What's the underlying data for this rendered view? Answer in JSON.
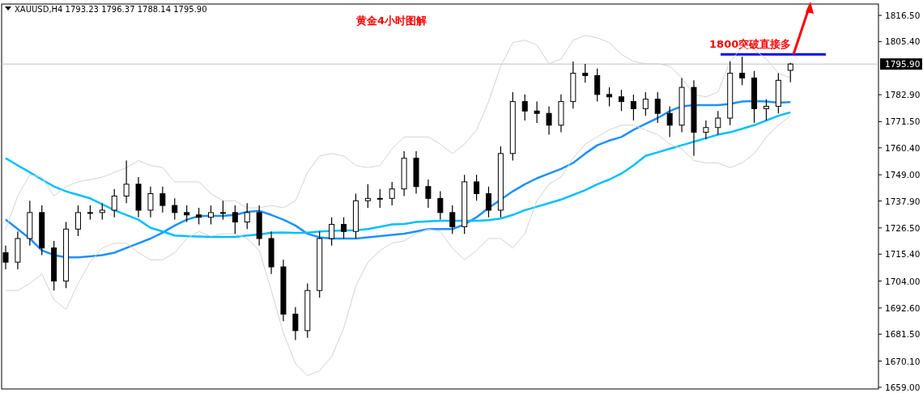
{
  "chart_data": {
    "type": "candlestick",
    "title": "黄金4小时图解",
    "subtitle": "XAUUSD,H4  1793.23 1796.37 1788.14 1795.90",
    "categories": [
      null,
      null,
      null,
      null,
      null,
      null,
      null,
      null,
      null,
      null,
      null,
      null,
      null,
      null,
      null,
      null,
      null,
      null,
      null,
      null,
      null,
      null,
      null,
      null,
      null,
      null,
      null,
      null,
      null,
      null,
      null,
      null,
      null,
      null,
      null,
      null,
      null,
      null,
      null,
      null,
      null,
      null,
      null,
      null,
      null,
      null,
      null,
      null,
      null,
      null,
      null,
      null,
      null,
      null,
      null,
      null,
      null,
      null,
      null,
      null,
      null,
      null,
      null,
      null,
      null,
      null
    ],
    "ohlc": [
      [
        1716,
        1719,
        1709,
        1712
      ],
      [
        1712,
        1725,
        1709,
        1722
      ],
      [
        1722,
        1738,
        1719,
        1733
      ],
      [
        1733,
        1736,
        1715,
        1718
      ],
      [
        1718,
        1721,
        1700,
        1704
      ],
      [
        1704,
        1729,
        1701,
        1726
      ],
      [
        1726,
        1736,
        1723,
        1733
      ],
      [
        1733,
        1736,
        1730,
        1733
      ],
      [
        1733,
        1737,
        1730,
        1734
      ],
      [
        1734,
        1743,
        1731,
        1740
      ],
      [
        1740,
        1755,
        1737,
        1745
      ],
      [
        1745,
        1748,
        1731,
        1734
      ],
      [
        1734,
        1744,
        1731,
        1741
      ],
      [
        1741,
        1744,
        1733,
        1736
      ],
      [
        1736,
        1739,
        1730,
        1733
      ],
      [
        1733,
        1736,
        1729,
        1732
      ],
      [
        1732,
        1735,
        1728,
        1731
      ],
      [
        1731,
        1736,
        1728,
        1733
      ],
      [
        1733,
        1738,
        1730,
        1733
      ],
      [
        1733,
        1736,
        1724,
        1729
      ],
      [
        1729,
        1737,
        1726,
        1733
      ],
      [
        1733,
        1736,
        1719,
        1722
      ],
      [
        1722,
        1725,
        1707,
        1710
      ],
      [
        1710,
        1713,
        1687,
        1690
      ],
      [
        1690,
        1693,
        1679,
        1683
      ],
      [
        1683,
        1703,
        1680,
        1700
      ],
      [
        1700,
        1725,
        1697,
        1722
      ],
      [
        1722,
        1731,
        1719,
        1728
      ],
      [
        1728,
        1731,
        1722,
        1725
      ],
      [
        1725,
        1741,
        1722,
        1738
      ],
      [
        1738,
        1745,
        1735,
        1739
      ],
      [
        1739,
        1743,
        1735,
        1739
      ],
      [
        1739,
        1746,
        1736,
        1743
      ],
      [
        1743,
        1759,
        1740,
        1756
      ],
      [
        1756,
        1759,
        1741,
        1744
      ],
      [
        1744,
        1747,
        1735,
        1739
      ],
      [
        1739,
        1742,
        1730,
        1733
      ],
      [
        1733,
        1736,
        1724,
        1727
      ],
      [
        1727,
        1749,
        1724,
        1746
      ],
      [
        1746,
        1749,
        1738,
        1741
      ],
      [
        1741,
        1744,
        1731,
        1734
      ],
      [
        1734,
        1761,
        1731,
        1758
      ],
      [
        1758,
        1784,
        1755,
        1780
      ],
      [
        1780,
        1783,
        1772,
        1776
      ],
      [
        1776,
        1780,
        1771,
        1775
      ],
      [
        1775,
        1778,
        1766,
        1770
      ],
      [
        1770,
        1783,
        1767,
        1780
      ],
      [
        1780,
        1797,
        1777,
        1792
      ],
      [
        1792,
        1796,
        1788,
        1791
      ],
      [
        1791,
        1794,
        1780,
        1783
      ],
      [
        1783,
        1786,
        1778,
        1782
      ],
      [
        1782,
        1785,
        1776,
        1780
      ],
      [
        1780,
        1783,
        1772,
        1777
      ],
      [
        1777,
        1784,
        1774,
        1781
      ],
      [
        1781,
        1784,
        1771,
        1775
      ],
      [
        1775,
        1778,
        1765,
        1770
      ],
      [
        1770,
        1790,
        1767,
        1786
      ],
      [
        1786,
        1789,
        1757,
        1767
      ],
      [
        1767,
        1772,
        1764,
        1769
      ],
      [
        1769,
        1776,
        1766,
        1773
      ],
      [
        1773,
        1797,
        1770,
        1792
      ],
      [
        1792,
        1799,
        1787,
        1790
      ],
      [
        1790,
        1793,
        1771,
        1777
      ],
      [
        1777,
        1781,
        1772,
        1778
      ],
      [
        1778,
        1792,
        1775,
        1789
      ],
      [
        1793.23,
        1796.37,
        1788.14,
        1795.9
      ]
    ],
    "series": [
      {
        "type": "line",
        "color": "#1e90ff",
        "values": [
          1730,
          1726,
          1722,
          1717,
          1715,
          1714,
          1714,
          1714.5,
          1715,
          1716,
          1718,
          1720,
          1722,
          1724.5,
          1727.5,
          1730,
          1731.5,
          1731.6,
          1731.6,
          1732,
          1733.3,
          1733.7,
          1732,
          1730,
          1727.5,
          1724,
          1722.5,
          1722,
          1722,
          1722,
          1722.5,
          1723,
          1723.5,
          1724,
          1725,
          1726,
          1726,
          1726,
          1728,
          1731,
          1735,
          1738.4,
          1742,
          1745,
          1747.5,
          1749.5,
          1751.5,
          1754,
          1758,
          1761.5,
          1763.5,
          1765,
          1768,
          1770.6,
          1773,
          1776,
          1778,
          1778.5,
          1778.5,
          1778.5,
          1779,
          1780,
          1780.2,
          1780,
          1779.5,
          1779.8
        ]
      },
      {
        "type": "line",
        "color": "#00bfff",
        "values": [
          1756,
          1753,
          1750,
          1747,
          1744,
          1742,
          1740.5,
          1739,
          1736.5,
          1734,
          1732,
          1730,
          1726.5,
          1725,
          1723.3,
          1723,
          1722.8,
          1722.7,
          1722.7,
          1722.7,
          1723.3,
          1723.7,
          1724.5,
          1724.6,
          1724.4,
          1724.5,
          1725,
          1725.2,
          1725.4,
          1725.5,
          1726,
          1727,
          1728,
          1728.2,
          1729,
          1729.3,
          1729.5,
          1729.5,
          1729.5,
          1729.5,
          1729.8,
          1730.5,
          1732,
          1734,
          1735.5,
          1737,
          1738.5,
          1740.5,
          1742.5,
          1745,
          1747,
          1749.5,
          1753,
          1757,
          1758.5,
          1760,
          1761.5,
          1763,
          1764.5,
          1766,
          1767,
          1768.5,
          1770,
          1772,
          1774,
          1775.4
        ]
      },
      {
        "type": "line",
        "color": "#d3d3d3",
        "values": [
          1726,
          1740,
          1749,
          1748,
          1740,
          1744,
          1746,
          1747,
          1748,
          1750,
          1752,
          1755,
          1753,
          1752,
          1746,
          1746,
          1746,
          1741,
          1738,
          1738,
          1735,
          1735,
          1736,
          1735,
          1738,
          1750,
          1757,
          1758,
          1757,
          1753,
          1752,
          1753,
          1760,
          1765,
          1765,
          1765,
          1762,
          1758,
          1762,
          1768,
          1780,
          1795,
          1805,
          1806,
          1804,
          1796,
          1798,
          1806,
          1808,
          1807,
          1805,
          1800,
          1797,
          1796,
          1796,
          1795,
          1790,
          1783,
          1782,
          1784,
          1797,
          1803,
          1802,
          1798,
          1792,
          1790
        ]
      },
      {
        "type": "line",
        "color": "#d3d3d3",
        "values": [
          1700,
          1700,
          1703,
          1707,
          1696,
          1692,
          1703,
          1712,
          1718,
          1720,
          1720,
          1716,
          1713,
          1713,
          1716,
          1722,
          1725,
          1723,
          1724,
          1724,
          1722,
          1717,
          1700,
          1682,
          1669,
          1664,
          1666,
          1672,
          1684,
          1702,
          1712,
          1717,
          1720,
          1721,
          1724,
          1726,
          1725,
          1718,
          1713,
          1717,
          1722,
          1722,
          1718,
          1724,
          1738,
          1745,
          1748,
          1756,
          1762,
          1765,
          1768,
          1770,
          1770,
          1768,
          1766,
          1762,
          1760,
          1755,
          1754,
          1754,
          1752,
          1754,
          1758,
          1765,
          1770,
          1774
        ]
      }
    ],
    "ylim": [
      1658.3,
      1821.3
    ],
    "yticks": [
      {
        "value": 1659,
        "label": "1659.00"
      },
      {
        "value": 1670.1,
        "label": "1670.10"
      },
      {
        "value": 1681.5,
        "label": "1681.50"
      },
      {
        "value": 1692.6,
        "label": "1692.60"
      },
      {
        "value": 1704,
        "label": "1704.00"
      },
      {
        "value": 1715.4,
        "label": "1715.40"
      },
      {
        "value": 1726.5,
        "label": "1726.50"
      },
      {
        "value": 1737.9,
        "label": "1737.90"
      },
      {
        "value": 1749,
        "label": "1749.00"
      },
      {
        "value": 1760.4,
        "label": "1760.40"
      },
      {
        "value": 1771.5,
        "label": "1771.50"
      },
      {
        "value": 1782.9,
        "label": "1782.90"
      },
      {
        "value": 1805.4,
        "label": "1805.40"
      },
      {
        "value": 1816.5,
        "label": "1816.50"
      }
    ],
    "ref_lines": [
      {
        "axis": "y",
        "value": 1795.9,
        "label": "1795.90",
        "color": "#c0c0c0"
      },
      {
        "axis": "y",
        "value": 1800,
        "label": "1800突破直接多",
        "color": "#0000ff"
      }
    ],
    "grid": false
  }
}
